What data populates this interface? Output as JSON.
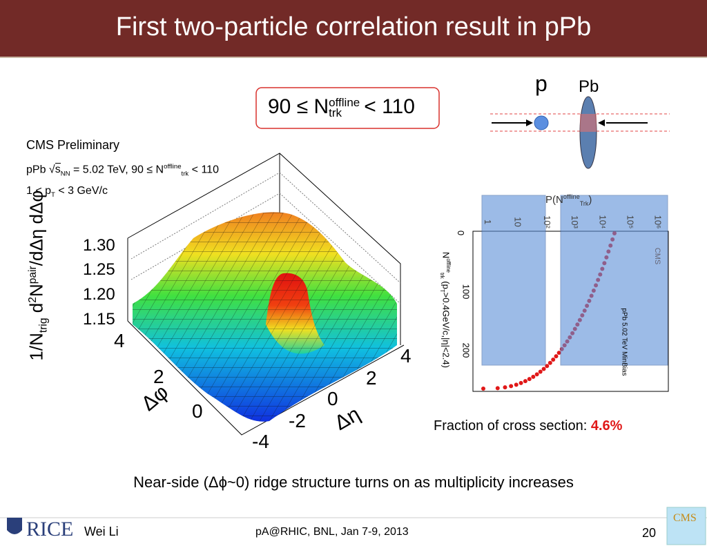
{
  "header": {
    "title": "First two-particle correlation result in pPb"
  },
  "selection_box": {
    "prefix": "90 ≤ N",
    "sup": "offline",
    "sub": "trk",
    "suffix": "< 110"
  },
  "plot3d": {
    "experiment": "CMS Preliminary",
    "info1": {
      "a": "pPb ",
      "b": "s",
      "b_sub": "NN",
      "c": " = 5.02 TeV, 90 ≤ N",
      "c_sup": "offline",
      "c_sub": "trk",
      "d": " < 110"
    },
    "info2": {
      "a": "1 < p",
      "a_sub": "T",
      "b": " < 3 GeV/c"
    },
    "z_label": {
      "one": "1",
      "den": "N",
      "den_sub": "trig",
      "num": "d",
      "num_sup2": "2",
      "num_n": "N",
      "num_sup": "pair",
      "num_den": "dΔη dΔφ"
    },
    "z_ticks": [
      "1.30",
      "1.25",
      "1.20",
      "1.15"
    ],
    "dphi_ticks": [
      "4",
      "2",
      "0"
    ],
    "dphi_label": "Δφ",
    "deta_ticks": [
      "4",
      "2",
      "0",
      "-2",
      "-4"
    ],
    "deta_label": "Δη"
  },
  "collision": {
    "p": "p",
    "pb": "Pb"
  },
  "distribution": {
    "top_label": {
      "a": "P(N",
      "sup": "offline",
      "sub": "Trk",
      "b": ")"
    },
    "top_ticks": [
      "1",
      "10",
      "10²",
      "10³",
      "10⁴",
      "10⁵",
      "10⁶"
    ],
    "side_ticks": [
      "0",
      "100",
      "200"
    ],
    "side_label": {
      "a": "N",
      "sup": "offline",
      "sub": "trk",
      "b": " (p",
      "b_sub": "T",
      "c": ">0.4GeV/c,|η|<2.4)"
    },
    "legend": "pPb 5.02 TeV MinBias",
    "cms": "CMS"
  },
  "fraction": {
    "label": "Fraction of cross section: ",
    "value": "4.6%"
  },
  "caption": "Near-side (Δϕ~0) ridge structure turns on as multiplicity increases",
  "footer": {
    "logo": "RICE",
    "author": "Wei Li",
    "event": "pA@RHIC, BNL, Jan 7-9, 2013",
    "page": "20",
    "cms_logo": "CMS"
  }
}
